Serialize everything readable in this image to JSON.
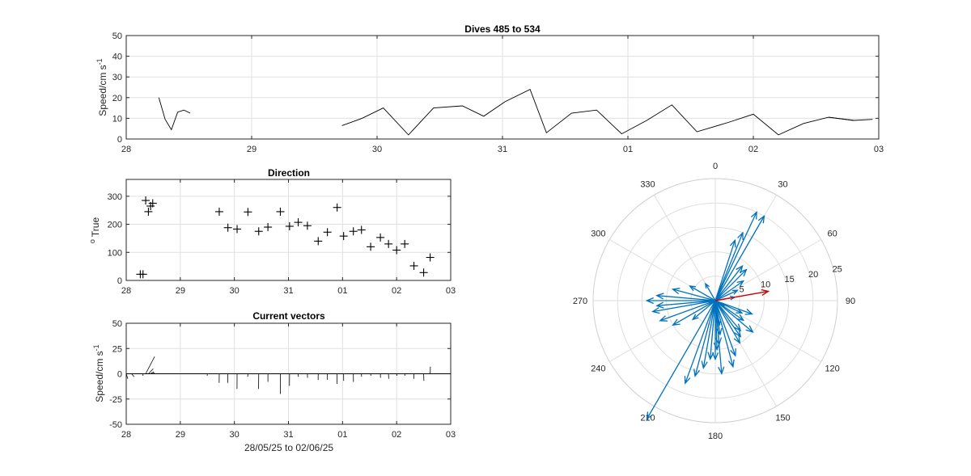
{
  "chart_data": [
    {
      "id": "speed",
      "type": "line",
      "title": "Dives 485 to 534",
      "ylabel": "Speed/cm s",
      "ylabel_sup": "-1",
      "xlabel": "",
      "x_tick_labels": [
        "28",
        "29",
        "30",
        "31",
        "01",
        "02",
        "03"
      ],
      "x_tick_days": [
        0,
        1,
        2,
        3,
        4,
        5,
        6
      ],
      "xlim": [
        0,
        6
      ],
      "ylim": [
        0,
        50
      ],
      "y_ticks": [
        0,
        10,
        20,
        30,
        40,
        50
      ],
      "grid": true,
      "segments": [
        {
          "x": [
            0.26,
            0.31,
            0.36,
            0.41,
            0.46,
            0.51
          ],
          "y": [
            20,
            9.5,
            4.5,
            13,
            14,
            12.5
          ]
        },
        {
          "x": [
            1.72,
            1.88,
            2.05,
            2.25,
            2.45,
            2.68,
            2.85,
            3.02,
            3.22,
            3.35,
            3.55,
            3.75,
            3.95,
            4.15,
            4.35,
            4.55,
            4.8,
            5.0,
            5.2,
            5.4,
            5.6,
            5.8
          ],
          "y": [
            6.5,
            10,
            15,
            2,
            15,
            16,
            11,
            18,
            24,
            3,
            12.5,
            14,
            2.5,
            9,
            16.5,
            3.5,
            8,
            12,
            2,
            7.5,
            10.5,
            9
          ]
        }
      ],
      "tail": {
        "x": [
          5.6,
          5.8,
          5.95
        ],
        "y": [
          10.5,
          9,
          9.5
        ]
      }
    },
    {
      "id": "direction",
      "type": "scatter",
      "title": "Direction",
      "ylabel": "True",
      "ylabel_prefix": "o",
      "x_tick_labels": [
        "28",
        "29",
        "30",
        "31",
        "01",
        "02",
        "03"
      ],
      "x_tick_days": [
        0,
        1,
        2,
        3,
        4,
        5,
        6
      ],
      "xlim": [
        0,
        6
      ],
      "ylim": [
        0,
        360
      ],
      "y_ticks": [
        0,
        100,
        200,
        300
      ],
      "grid": true,
      "marker": "+",
      "points": [
        [
          0.26,
          22
        ],
        [
          0.31,
          22
        ],
        [
          0.36,
          285
        ],
        [
          0.41,
          245
        ],
        [
          0.45,
          265
        ],
        [
          0.49,
          275
        ],
        [
          1.72,
          245
        ],
        [
          1.88,
          188
        ],
        [
          2.05,
          183
        ],
        [
          2.25,
          244
        ],
        [
          2.45,
          175
        ],
        [
          2.62,
          190
        ],
        [
          2.85,
          245
        ],
        [
          3.02,
          193
        ],
        [
          3.18,
          207
        ],
        [
          3.35,
          195
        ],
        [
          3.55,
          140
        ],
        [
          3.72,
          172
        ],
        [
          3.9,
          260
        ],
        [
          4.02,
          158
        ],
        [
          4.2,
          175
        ],
        [
          4.35,
          180
        ],
        [
          4.52,
          120
        ],
        [
          4.7,
          153
        ],
        [
          4.85,
          130
        ],
        [
          5.0,
          108
        ],
        [
          5.15,
          130
        ],
        [
          5.32,
          52
        ],
        [
          5.5,
          28
        ],
        [
          5.62,
          82
        ]
      ]
    },
    {
      "id": "vectors",
      "type": "line",
      "title": "Current vectors",
      "ylabel": "Speed/cm s",
      "ylabel_sup": "-1",
      "xlabel": "28/05/25 to 02/06/25",
      "x_tick_labels": [
        "28",
        "29",
        "30",
        "31",
        "01",
        "02",
        "03"
      ],
      "x_tick_days": [
        0,
        1,
        2,
        3,
        4,
        5,
        6
      ],
      "xlim": [
        0,
        6
      ],
      "ylim": [
        -50,
        50
      ],
      "y_ticks": [
        -50,
        -25,
        0,
        25,
        50
      ],
      "grid": true,
      "sticks": [
        [
          0.0,
          2,
          -5
        ],
        [
          0.1,
          3,
          -3
        ],
        [
          0.2,
          2,
          0
        ],
        [
          0.26,
          19,
          0
        ],
        [
          0.31,
          0,
          -2
        ],
        [
          0.36,
          11,
          17
        ],
        [
          0.41,
          6,
          5
        ],
        [
          0.45,
          4,
          2
        ],
        [
          0.49,
          2,
          1
        ],
        [
          1.5,
          -0.2,
          -2
        ],
        [
          1.72,
          -0.1,
          -9
        ],
        [
          1.88,
          -0.1,
          -9
        ],
        [
          2.05,
          -0.1,
          -15
        ],
        [
          2.25,
          -0.3,
          -3
        ],
        [
          2.45,
          -0.2,
          -15
        ],
        [
          2.62,
          0.05,
          -8
        ],
        [
          2.85,
          0.1,
          -20
        ],
        [
          3.02,
          -0.1,
          -12
        ],
        [
          3.18,
          0.2,
          -3
        ],
        [
          3.35,
          0.2,
          -4
        ],
        [
          3.55,
          -0.1,
          -6
        ],
        [
          3.72,
          0.1,
          -6
        ],
        [
          3.9,
          -0.3,
          -10
        ],
        [
          4.02,
          0.05,
          -7
        ],
        [
          4.2,
          0.1,
          -8
        ],
        [
          4.35,
          0.1,
          -3
        ],
        [
          4.52,
          0.2,
          -2
        ],
        [
          4.7,
          0.1,
          -4
        ],
        [
          4.85,
          0.2,
          -5
        ],
        [
          5.0,
          0.3,
          -2
        ],
        [
          5.15,
          0.1,
          -2
        ],
        [
          5.32,
          0.05,
          -5
        ],
        [
          5.5,
          0.3,
          -7
        ],
        [
          5.62,
          0.3,
          7
        ]
      ]
    },
    {
      "id": "polar",
      "type": "polar-vectors",
      "angle_ticks": [
        "0",
        "30",
        "60",
        "90",
        "120",
        "150",
        "180",
        "210",
        "240",
        "270",
        "300",
        "330"
      ],
      "radial_ticks": [
        "5",
        "10",
        "15",
        "20",
        "25"
      ],
      "rlim": [
        0,
        25
      ],
      "vector_color": "#0072BD",
      "mean_color": "#D00000",
      "vectors": [
        [
          20,
          25
        ],
        [
          20,
          30
        ],
        [
          15,
          22
        ],
        [
          13,
          18
        ],
        [
          9,
          38
        ],
        [
          9,
          45
        ],
        [
          7,
          55
        ],
        [
          5,
          65
        ],
        [
          4,
          80
        ],
        [
          2,
          120
        ],
        [
          5,
          170
        ],
        [
          7,
          172
        ],
        [
          9,
          175
        ],
        [
          10,
          178
        ],
        [
          12,
          180
        ],
        [
          15,
          175
        ],
        [
          14,
          165
        ],
        [
          12,
          160
        ],
        [
          10,
          150
        ],
        [
          9,
          145
        ],
        [
          8,
          140
        ],
        [
          10,
          130
        ],
        [
          7,
          125
        ],
        [
          6,
          115
        ],
        [
          8,
          110
        ],
        [
          12,
          185
        ],
        [
          14,
          190
        ],
        [
          16,
          195
        ],
        [
          18,
          200
        ],
        [
          28,
          210
        ],
        [
          6,
          230
        ],
        [
          10,
          240
        ],
        [
          12,
          250
        ],
        [
          13,
          260
        ],
        [
          12,
          265
        ],
        [
          14,
          270
        ],
        [
          12,
          275
        ],
        [
          9,
          285
        ],
        [
          6,
          300
        ],
        [
          4,
          330
        ]
      ],
      "mean_vector": [
        11,
        80
      ]
    }
  ]
}
